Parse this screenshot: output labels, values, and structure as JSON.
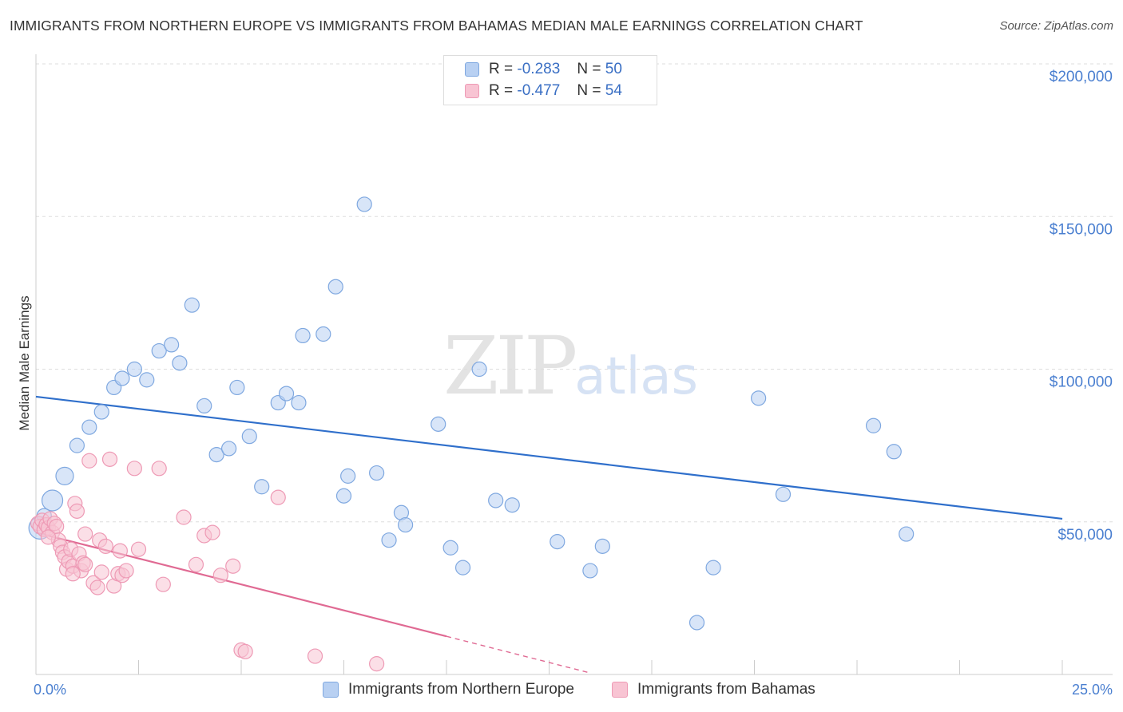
{
  "title": "IMMIGRANTS FROM NORTHERN EUROPE VS IMMIGRANTS FROM BAHAMAS MEDIAN MALE EARNINGS CORRELATION CHART",
  "source": "Source: ZipAtlas.com",
  "watermark": {
    "zip": "ZIP",
    "atlas": "atlas"
  },
  "legend": {
    "series1": {
      "r_label": "R =",
      "r_value": "-0.283",
      "n_label": "N =",
      "n_value": "50"
    },
    "series2": {
      "r_label": "R =",
      "r_value": "-0.477",
      "n_label": "N =",
      "n_value": "54"
    }
  },
  "colors": {
    "blue_fill": "#b8d0f2",
    "blue_stroke": "#7fa8e0",
    "blue_line": "#2f6fcb",
    "pink_fill": "#f8c4d3",
    "pink_stroke": "#ee9ab5",
    "pink_line": "#e06a93",
    "grid": "#dddddd",
    "axis_label": "#4a7fd0"
  },
  "chart_data": {
    "type": "scatter",
    "title": "IMMIGRANTS FROM NORTHERN EUROPE VS IMMIGRANTS FROM BAHAMAS MEDIAN MALE EARNINGS CORRELATION CHART",
    "xlabel": "",
    "ylabel": "Median Male Earnings",
    "xlim": [
      0,
      25
    ],
    "ylim": [
      0,
      200000
    ],
    "x_tick_labels": [
      "0.0%",
      "25.0%"
    ],
    "y_ticks": [
      50000,
      100000,
      150000,
      200000
    ],
    "y_tick_labels": [
      "$50,000",
      "$100,000",
      "$150,000",
      "$200,000"
    ],
    "grid": true,
    "series": [
      {
        "name": "Immigrants from Northern Europe",
        "color": "blue",
        "points": [
          [
            0.1,
            48000,
            14
          ],
          [
            0.4,
            57000,
            13
          ],
          [
            0.7,
            65000,
            11
          ],
          [
            1.0,
            75000,
            9
          ],
          [
            1.3,
            81000,
            9
          ],
          [
            1.6,
            86000,
            9
          ],
          [
            1.9,
            94000,
            9
          ],
          [
            2.1,
            97000,
            9
          ],
          [
            2.4,
            100000,
            9
          ],
          [
            2.7,
            96500,
            9
          ],
          [
            3.0,
            106000,
            9
          ],
          [
            3.3,
            108000,
            9
          ],
          [
            3.5,
            102000,
            9
          ],
          [
            3.8,
            121000,
            9
          ],
          [
            4.1,
            88000,
            9
          ],
          [
            4.4,
            72000,
            9
          ],
          [
            4.7,
            74000,
            9
          ],
          [
            4.9,
            94000,
            9
          ],
          [
            5.2,
            78000,
            9
          ],
          [
            5.5,
            61500,
            9
          ],
          [
            5.9,
            89000,
            9
          ],
          [
            6.1,
            92000,
            9
          ],
          [
            6.4,
            89000,
            9
          ],
          [
            6.5,
            111000,
            9
          ],
          [
            7.0,
            111500,
            9
          ],
          [
            7.3,
            127000,
            9
          ],
          [
            7.5,
            58500,
            9
          ],
          [
            7.6,
            65000,
            9
          ],
          [
            8.0,
            154000,
            9
          ],
          [
            8.3,
            66000,
            9
          ],
          [
            8.6,
            44000,
            9
          ],
          [
            8.9,
            53000,
            9
          ],
          [
            9.0,
            49000,
            9
          ],
          [
            9.8,
            82000,
            9
          ],
          [
            10.1,
            41500,
            9
          ],
          [
            10.4,
            35000,
            9
          ],
          [
            10.8,
            100000,
            9
          ],
          [
            11.2,
            57000,
            9
          ],
          [
            11.6,
            55500,
            9
          ],
          [
            12.7,
            43500,
            9
          ],
          [
            13.5,
            34000,
            9
          ],
          [
            13.8,
            42000,
            9
          ],
          [
            16.1,
            17000,
            9
          ],
          [
            16.5,
            35000,
            9
          ],
          [
            17.6,
            90500,
            9
          ],
          [
            18.2,
            59000,
            9
          ],
          [
            20.4,
            81500,
            9
          ],
          [
            20.9,
            73000,
            9
          ],
          [
            21.2,
            46000,
            9
          ],
          [
            0.2,
            52000,
            9
          ]
        ]
      },
      {
        "name": "Immigrants from Bahamas",
        "color": "pink",
        "points": [
          [
            0.05,
            49500,
            9
          ],
          [
            0.1,
            48500,
            9
          ],
          [
            0.15,
            50500,
            9
          ],
          [
            0.2,
            47500,
            9
          ],
          [
            0.25,
            49000,
            9
          ],
          [
            0.3,
            48000,
            9
          ],
          [
            0.35,
            51000,
            9
          ],
          [
            0.4,
            46500,
            9
          ],
          [
            0.45,
            49500,
            9
          ],
          [
            0.5,
            48500,
            9
          ],
          [
            0.55,
            44000,
            9
          ],
          [
            0.6,
            42000,
            9
          ],
          [
            0.65,
            40000,
            9
          ],
          [
            0.7,
            38500,
            9
          ],
          [
            0.75,
            34500,
            9
          ],
          [
            0.8,
            37000,
            9
          ],
          [
            0.85,
            41000,
            9
          ],
          [
            0.9,
            35500,
            9
          ],
          [
            0.95,
            56000,
            9
          ],
          [
            1.0,
            53500,
            9
          ],
          [
            1.05,
            39500,
            9
          ],
          [
            1.1,
            34000,
            9
          ],
          [
            1.15,
            36500,
            9
          ],
          [
            1.2,
            46000,
            9
          ],
          [
            1.3,
            70000,
            9
          ],
          [
            1.4,
            30000,
            9
          ],
          [
            1.5,
            28500,
            9
          ],
          [
            1.55,
            44000,
            9
          ],
          [
            1.6,
            33500,
            9
          ],
          [
            1.7,
            42000,
            9
          ],
          [
            1.8,
            70500,
            9
          ],
          [
            1.9,
            29000,
            9
          ],
          [
            2.0,
            33000,
            9
          ],
          [
            2.05,
            40500,
            9
          ],
          [
            2.1,
            32500,
            9
          ],
          [
            2.2,
            34000,
            9
          ],
          [
            2.4,
            67500,
            9
          ],
          [
            2.5,
            41000,
            9
          ],
          [
            3.0,
            67500,
            9
          ],
          [
            3.1,
            29500,
            9
          ],
          [
            3.6,
            51500,
            9
          ],
          [
            3.9,
            36000,
            9
          ],
          [
            4.1,
            45500,
            9
          ],
          [
            4.3,
            46500,
            9
          ],
          [
            4.5,
            32500,
            9
          ],
          [
            4.8,
            35500,
            9
          ],
          [
            5.0,
            8000,
            9
          ],
          [
            5.1,
            7500,
            9
          ],
          [
            5.9,
            58000,
            9
          ],
          [
            6.8,
            6000,
            9
          ],
          [
            8.3,
            3500,
            9
          ],
          [
            0.3,
            45000,
            9
          ],
          [
            0.9,
            33000,
            9
          ],
          [
            1.2,
            36000,
            9
          ]
        ]
      }
    ],
    "trend_lines": [
      {
        "series": "Immigrants from Northern Europe",
        "x0": 0,
        "y0": 91000,
        "x1": 25,
        "y1": 51000
      },
      {
        "series": "Immigrants from Bahamas",
        "x0": 0,
        "y0": 46500,
        "x1": 10,
        "y1": 12500,
        "dashed_to_x": 13.5,
        "dashed_to_y": 500
      }
    ]
  }
}
